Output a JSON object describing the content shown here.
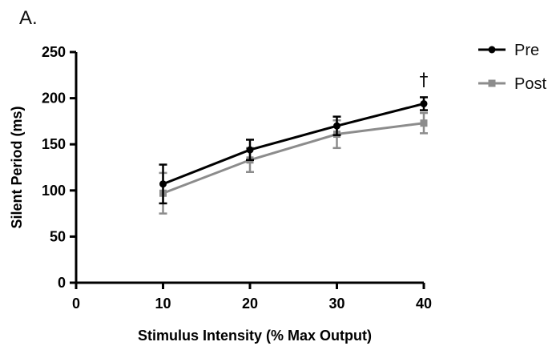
{
  "panel_label": "A.",
  "chart_data": {
    "type": "line",
    "xlabel": "Stimulus Intensity (% Max Output)",
    "ylabel": "Silent Period (ms)",
    "xlim": [
      0,
      40
    ],
    "ylim": [
      0,
      250
    ],
    "xticks": [
      0,
      10,
      20,
      30,
      40
    ],
    "yticks": [
      0,
      50,
      100,
      150,
      200,
      250
    ],
    "grid": false,
    "legend_position": "top-right",
    "series": [
      {
        "name": "Pre",
        "color": "#000000",
        "marker": "circle",
        "x": [
          10,
          20,
          30,
          40
        ],
        "values": [
          107,
          144,
          170,
          194
        ],
        "error": [
          21,
          11,
          10,
          7
        ]
      },
      {
        "name": "Post",
        "color": "#8c8c8c",
        "marker": "square",
        "x": [
          10,
          20,
          30,
          40
        ],
        "values": [
          97,
          133,
          161,
          173
        ],
        "error": [
          22,
          13,
          15,
          11
        ]
      }
    ],
    "annotations": [
      {
        "x": 40,
        "text": "†"
      }
    ]
  }
}
